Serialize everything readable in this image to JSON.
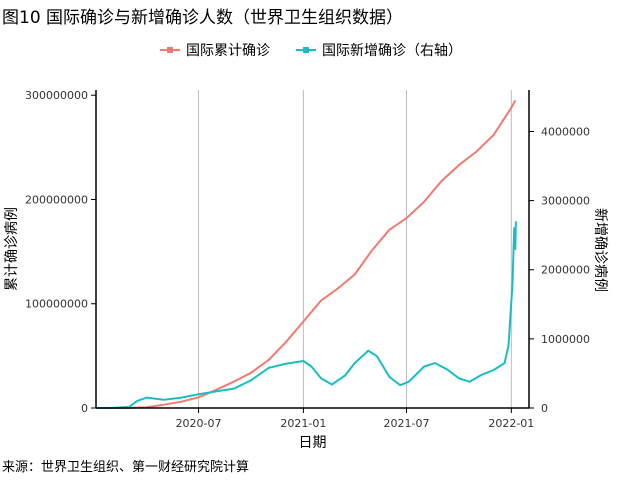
{
  "title": "图10 国际确诊与新增确诊人数（世界卫生组织数据）",
  "source": "来源：世界卫生组织、第一财经研究院计算",
  "colors": {
    "cumulative": "#F07A72",
    "new_cases": "#17BFC4",
    "grid": "#BDBDBD",
    "axis": "#000000"
  },
  "chart_data": {
    "type": "line",
    "title": "图10 国际确诊与新增确诊人数（世界卫生组织数据）",
    "xlabel": "日期",
    "ylabel": "累计确诊病例",
    "y2label": "新增确诊病例",
    "x_ticks": [
      "2020-07",
      "2021-01",
      "2021-07",
      "2022-01"
    ],
    "y_ticks": [
      "0",
      "100000000",
      "200000000",
      "300000000"
    ],
    "y2_ticks": [
      "0",
      "1000000",
      "2000000",
      "3000000",
      "4000000"
    ],
    "xlim": [
      "2020-01-03",
      "2022-02-01"
    ],
    "ylim": [
      0,
      305000000
    ],
    "y2lim": [
      0,
      4600000
    ],
    "legend_position": "top",
    "vertical_grid": true,
    "series": [
      {
        "name": "国际累计确诊",
        "axis": "left",
        "points": [
          [
            "2020-01-03",
            0
          ],
          [
            "2020-02-01",
            12000
          ],
          [
            "2020-03-01",
            87000
          ],
          [
            "2020-04-01",
            800000
          ],
          [
            "2020-05-01",
            3200000
          ],
          [
            "2020-06-01",
            6000000
          ],
          [
            "2020-07-01",
            10300000
          ],
          [
            "2020-08-01",
            17500000
          ],
          [
            "2020-09-01",
            25300000
          ],
          [
            "2020-10-01",
            33800000
          ],
          [
            "2020-11-01",
            46000000
          ],
          [
            "2020-12-01",
            63000000
          ],
          [
            "2021-01-01",
            83000000
          ],
          [
            "2021-02-01",
            103000000
          ],
          [
            "2021-03-01",
            114000000
          ],
          [
            "2021-04-01",
            128000000
          ],
          [
            "2021-05-01",
            151000000
          ],
          [
            "2021-06-01",
            171000000
          ],
          [
            "2021-07-01",
            182000000
          ],
          [
            "2021-08-01",
            198000000
          ],
          [
            "2021-09-01",
            218000000
          ],
          [
            "2021-10-01",
            233000000
          ],
          [
            "2021-11-01",
            246000000
          ],
          [
            "2021-12-01",
            262000000
          ],
          [
            "2022-01-01",
            288000000
          ],
          [
            "2022-01-08",
            295000000
          ]
        ]
      },
      {
        "name": "国际新增确诊（右轴）",
        "axis": "right",
        "points": [
          [
            "2020-01-03",
            0
          ],
          [
            "2020-02-01",
            2000
          ],
          [
            "2020-03-01",
            15000
          ],
          [
            "2020-03-15",
            100000
          ],
          [
            "2020-04-01",
            150000
          ],
          [
            "2020-05-01",
            120000
          ],
          [
            "2020-06-01",
            150000
          ],
          [
            "2020-07-01",
            200000
          ],
          [
            "2020-08-01",
            240000
          ],
          [
            "2020-09-01",
            280000
          ],
          [
            "2020-10-01",
            400000
          ],
          [
            "2020-11-01",
            580000
          ],
          [
            "2020-12-01",
            640000
          ],
          [
            "2021-01-01",
            680000
          ],
          [
            "2021-01-15",
            600000
          ],
          [
            "2021-02-01",
            430000
          ],
          [
            "2021-02-20",
            340000
          ],
          [
            "2021-03-15",
            470000
          ],
          [
            "2021-04-01",
            650000
          ],
          [
            "2021-04-25",
            830000
          ],
          [
            "2021-05-10",
            750000
          ],
          [
            "2021-06-01",
            450000
          ],
          [
            "2021-06-20",
            330000
          ],
          [
            "2021-07-05",
            380000
          ],
          [
            "2021-08-01",
            600000
          ],
          [
            "2021-08-20",
            650000
          ],
          [
            "2021-09-10",
            560000
          ],
          [
            "2021-10-01",
            430000
          ],
          [
            "2021-10-20",
            380000
          ],
          [
            "2021-11-10",
            480000
          ],
          [
            "2021-12-01",
            550000
          ],
          [
            "2021-12-20",
            650000
          ],
          [
            "2021-12-27",
            900000
          ],
          [
            "2022-01-03",
            1800000
          ],
          [
            "2022-01-06",
            2600000
          ],
          [
            "2022-01-08",
            2300000
          ],
          [
            "2022-01-09",
            2700000
          ]
        ]
      }
    ]
  }
}
